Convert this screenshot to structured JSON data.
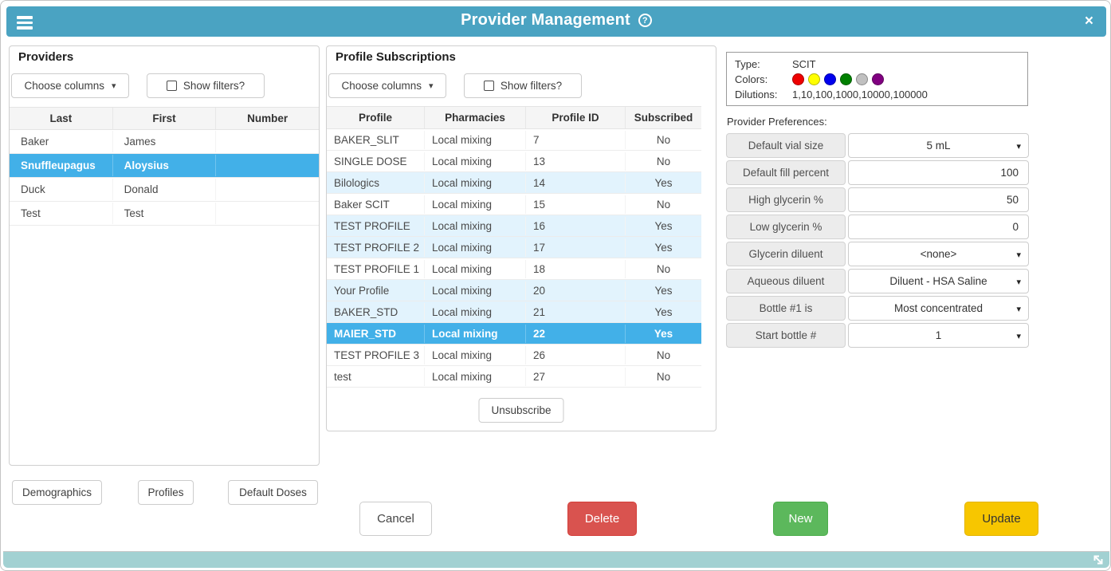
{
  "window": {
    "title": "Provider Management"
  },
  "icons": {
    "menu": "hamburger-menu",
    "help": "?",
    "close": "×",
    "dropdown_caret": "▾",
    "resize": "diagonal-resize-arrow"
  },
  "providers_panel": {
    "title": "Providers",
    "choose_columns_label": "Choose columns",
    "show_filters_label": "Show filters?",
    "columns": [
      "Last",
      "First",
      "Number"
    ],
    "rows": [
      {
        "last": "Baker",
        "first": "James",
        "number": "",
        "selected": false
      },
      {
        "last": "Snuffleupagus",
        "first": "Aloysius",
        "number": "",
        "selected": true
      },
      {
        "last": "Duck",
        "first": "Donald",
        "number": "",
        "selected": false
      },
      {
        "last": "Test",
        "first": "Test",
        "number": "",
        "selected": false
      }
    ]
  },
  "subscriptions_panel": {
    "title": "Profile Subscriptions",
    "choose_columns_label": "Choose columns",
    "show_filters_label": "Show filters?",
    "columns": [
      "Profile",
      "Pharmacies",
      "Profile ID",
      "Subscribed"
    ],
    "rows": [
      {
        "profile": "BAKER_SLIT",
        "pharmacies": "Local mixing",
        "profile_id": "7",
        "subscribed": "No",
        "selected": false
      },
      {
        "profile": "SINGLE DOSE",
        "pharmacies": "Local mixing",
        "profile_id": "13",
        "subscribed": "No",
        "selected": false
      },
      {
        "profile": "Bilologics",
        "pharmacies": "Local mixing",
        "profile_id": "14",
        "subscribed": "Yes",
        "selected": false
      },
      {
        "profile": "Baker SCIT",
        "pharmacies": "Local mixing",
        "profile_id": "15",
        "subscribed": "No",
        "selected": false
      },
      {
        "profile": "TEST PROFILE",
        "pharmacies": "Local mixing",
        "profile_id": "16",
        "subscribed": "Yes",
        "selected": false
      },
      {
        "profile": "TEST PROFILE 2",
        "pharmacies": "Local mixing",
        "profile_id": "17",
        "subscribed": "Yes",
        "selected": false
      },
      {
        "profile": "TEST PROFILE 1",
        "pharmacies": "Local mixing",
        "profile_id": "18",
        "subscribed": "No",
        "selected": false
      },
      {
        "profile": "Your Profile",
        "pharmacies": "Local mixing",
        "profile_id": "20",
        "subscribed": "Yes",
        "selected": false
      },
      {
        "profile": "BAKER_STD",
        "pharmacies": "Local mixing",
        "profile_id": "21",
        "subscribed": "Yes",
        "selected": false
      },
      {
        "profile": "MAIER_STD",
        "pharmacies": "Local mixing",
        "profile_id": "22",
        "subscribed": "Yes",
        "selected": true
      },
      {
        "profile": "TEST PROFILE 3",
        "pharmacies": "Local mixing",
        "profile_id": "26",
        "subscribed": "No",
        "selected": false
      },
      {
        "profile": "test",
        "pharmacies": "Local mixing",
        "profile_id": "27",
        "subscribed": "No",
        "selected": false
      }
    ],
    "unsubscribe_label": "Unsubscribe"
  },
  "details_panel": {
    "type_label": "Type:",
    "type_value": "SCIT",
    "colors_label": "Colors:",
    "colors": [
      "#ee0000",
      "#ffff00",
      "#0000ee",
      "#008000",
      "#c0c0c0",
      "#800080"
    ],
    "dilutions_label": "Dilutions:",
    "dilutions_value": "1,10,100,1000,10000,100000",
    "preferences_title": "Provider Preferences:",
    "preferences": [
      {
        "label": "Default vial size",
        "value": "5 mL",
        "type": "dropdown"
      },
      {
        "label": "Default fill percent",
        "value": "100",
        "type": "input"
      },
      {
        "label": "High glycerin %",
        "value": "50",
        "type": "input"
      },
      {
        "label": "Low glycerin %",
        "value": "0",
        "type": "input"
      },
      {
        "label": "Glycerin diluent",
        "value": "<none>",
        "type": "dropdown"
      },
      {
        "label": "Aqueous diluent",
        "value": "Diluent - HSA Saline",
        "type": "dropdown"
      },
      {
        "label": "Bottle #1 is",
        "value": "Most concentrated",
        "type": "dropdown"
      },
      {
        "label": "Start bottle #",
        "value": "1",
        "type": "dropdown"
      }
    ]
  },
  "footer": {
    "left_buttons": [
      "Demographics",
      "Profiles",
      "Default Doses"
    ],
    "cancel_label": "Cancel",
    "delete_label": "Delete",
    "new_label": "New",
    "update_label": "Update"
  },
  "theme": {
    "header_teal": "#4aa3c2",
    "footer_teal": "#a2d1d2",
    "selected_row_blue": "#42b0e8",
    "subscribed_row_blue": "#e2f3fd",
    "delete_red": "#d9534f",
    "new_green": "#5cb85c",
    "update_yellow": "#f7c600"
  }
}
